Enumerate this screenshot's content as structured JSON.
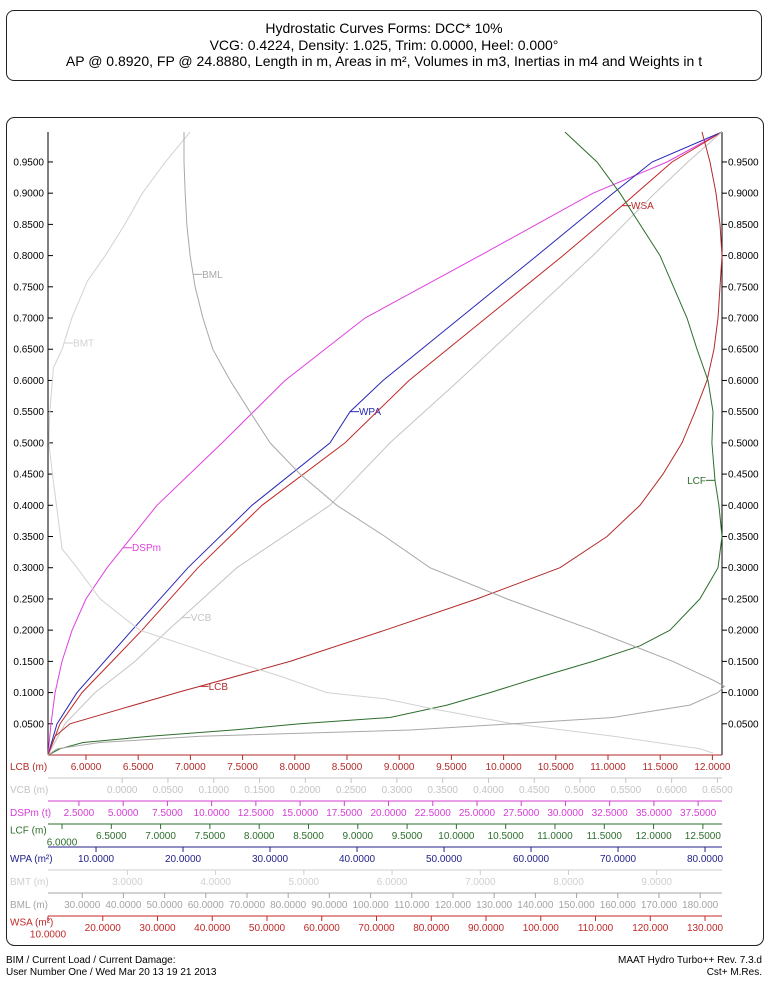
{
  "header": {
    "line1": "Hydrostatic Curves Forms: DCC* 10%",
    "line2": "VCG: 0.4224, Density: 1.025, Trim: 0.0000, Heel: 0.000°",
    "line3": "AP @ 0.8920, FP @ 24.8880, Length in m, Areas in m², Volumes in m3, Inertias in m4 and Weights in t"
  },
  "footer": {
    "left1": "BIM / Current Load / Current Damage:",
    "left2": "User Number One / Wed Mar 20 13 19 21 2013",
    "right1": "MAAT Hydro Turbo++ Rev. 7.3.d",
    "right2": "Cst+ M.Res."
  },
  "chart_data": {
    "type": "line",
    "title": "Hydrostatic Curves Forms: DCC* 10%",
    "ylim": [
      0,
      0.998
    ],
    "y_ticks": [
      "0.0500",
      "0.1000",
      "0.1500",
      "0.2000",
      "0.2500",
      "0.3000",
      "0.3500",
      "0.4000",
      "0.4500",
      "0.5000",
      "0.5500",
      "0.6000",
      "0.6500",
      "0.7000",
      "0.7500",
      "0.8000",
      "0.8500",
      "0.9000",
      "0.9500"
    ],
    "grid": false,
    "x_axes": [
      {
        "key": "LCB",
        "label": "LCB (m)",
        "color": "#b22a2a",
        "range": [
          5.636,
          12.092
        ],
        "ticks": [
          "6.0000",
          "6.5000",
          "7.0000",
          "7.5000",
          "8.0000",
          "8.5000",
          "9.0000",
          "9.5000",
          "10.0000",
          "10.5000",
          "11.0000",
          "11.5000",
          "12.0000"
        ]
      },
      {
        "key": "VCB",
        "label": "VCB (m)",
        "color": "#c4c4c4",
        "range": [
          -0.081,
          0.655
        ],
        "ticks": [
          "0.0000",
          "0.0500",
          "0.1000",
          "0.1500",
          "0.2000",
          "0.2500",
          "0.3000",
          "0.3500",
          "0.4000",
          "0.4500",
          "0.5000",
          "0.5500",
          "0.6000",
          "0.6500"
        ]
      },
      {
        "key": "DSPm",
        "label": "DSPm (t)",
        "color": "#d63cd6",
        "range": [
          0.75,
          38.85
        ],
        "ticks": [
          "2.5000",
          "5.0000",
          "7.5000",
          "10.0000",
          "12.5000",
          "15.0000",
          "17.5000",
          "20.0000",
          "22.5000",
          "25.0000",
          "27.5000",
          "30.0000",
          "32.5000",
          "35.0000",
          "37.5000"
        ]
      },
      {
        "key": "LCF",
        "label": "LCF (m)",
        "color": "#2d6e2d",
        "range": [
          5.858,
          12.694
        ],
        "ticks": [
          "6.0000",
          "6.5000",
          "7.0000",
          "7.5000",
          "8.0000",
          "8.5000",
          "9.0000",
          "9.5000",
          "10.0000",
          "10.5000",
          "11.0000",
          "11.5000",
          "12.0000",
          "12.5000"
        ]
      },
      {
        "key": "WPA",
        "label": "WPA (m²)",
        "color": "#22228a",
        "range": [
          4.48,
          81.95
        ],
        "ticks": [
          "10.0000",
          "20.0000",
          "30.0000",
          "40.0000",
          "50.0000",
          "60.0000",
          "70.0000",
          "80.0000"
        ]
      },
      {
        "key": "BMT",
        "label": "BMT (m)",
        "color": "#cfcfcf",
        "range": [
          2.1,
          9.74
        ],
        "ticks": [
          "3.0000",
          "4.0000",
          "5.0000",
          "6.0000",
          "7.0000",
          "8.0000",
          "9.0000"
        ]
      },
      {
        "key": "BML",
        "label": "BML (m)",
        "color": "#a4a4a4",
        "range": [
          21.7,
          185.3
        ],
        "ticks": [
          "30.0000",
          "40.0000",
          "50.0000",
          "60.0000",
          "70.0000",
          "80.0000",
          "90.0000",
          "100.000",
          "110.000",
          "120.000",
          "130.000",
          "140.000",
          "150.000",
          "160.000",
          "170.000",
          "180.000"
        ]
      },
      {
        "key": "WSA",
        "label": "WSA (m²)",
        "color": "#c02828",
        "range": [
          10,
          133.1
        ],
        "ticks": [
          "10.0000",
          "20.0000",
          "30.0000",
          "40.0000",
          "50.0000",
          "60.0000",
          "70.0000",
          "80.0000",
          "90.0000",
          "100.000",
          "110.000",
          "120.000",
          "130.000"
        ]
      }
    ],
    "series": [
      {
        "name": "DSPm",
        "axis": "DSPm",
        "color": "#e040e0",
        "label_at": 0.332,
        "points": [
          [
            0.75,
            0
          ],
          [
            0.92,
            0.05
          ],
          [
            1.15,
            0.1
          ],
          [
            1.54,
            0.15
          ],
          [
            2.11,
            0.2
          ],
          [
            2.9,
            0.25
          ],
          [
            4.09,
            0.3
          ],
          [
            6.91,
            0.4
          ],
          [
            10.59,
            0.5
          ],
          [
            14.15,
            0.6
          ],
          [
            18.67,
            0.7
          ],
          [
            25.17,
            0.8
          ],
          [
            31.56,
            0.9
          ],
          [
            35.74,
            0.95
          ],
          [
            38.85,
            0.998
          ]
        ]
      },
      {
        "name": "WPA",
        "axis": "WPA",
        "color": "#2828b4",
        "label_at": 0.55,
        "points": [
          [
            4.48,
            0
          ],
          [
            5.51,
            0.05
          ],
          [
            7.81,
            0.1
          ],
          [
            14.14,
            0.2
          ],
          [
            20.57,
            0.3
          ],
          [
            27.93,
            0.4
          ],
          [
            36.89,
            0.5
          ],
          [
            39.19,
            0.55
          ],
          [
            42.99,
            0.6
          ],
          [
            51.84,
            0.7
          ],
          [
            60.69,
            0.8
          ],
          [
            69.42,
            0.9
          ],
          [
            73.91,
            0.95
          ],
          [
            81.95,
            0.998
          ]
        ]
      },
      {
        "name": "WSA",
        "axis": "WSA",
        "color": "#c02828",
        "label_at": 0.88,
        "points": [
          [
            10,
            0
          ],
          [
            12.19,
            0.05
          ],
          [
            16.21,
            0.1
          ],
          [
            27.17,
            0.2
          ],
          [
            37.4,
            0.3
          ],
          [
            49.09,
            0.4
          ],
          [
            64.25,
            0.5
          ],
          [
            75.94,
            0.6
          ],
          [
            90.0,
            0.7
          ],
          [
            104.06,
            0.8
          ],
          [
            114.84,
            0.88
          ],
          [
            123.97,
            0.95
          ],
          [
            133.1,
            0.998
          ]
        ]
      },
      {
        "name": "VCB",
        "axis": "VCB",
        "color": "#c4c4c4",
        "label_at": 0.22,
        "points": [
          [
            -0.081,
            0
          ],
          [
            -0.0624,
            0.05
          ],
          [
            -0.0297,
            0.1
          ],
          [
            0.014,
            0.15
          ],
          [
            0.05,
            0.2
          ],
          [
            0.1253,
            0.3
          ],
          [
            0.2269,
            0.4
          ],
          [
            0.2923,
            0.5
          ],
          [
            0.3677,
            0.6
          ],
          [
            0.4408,
            0.7
          ],
          [
            0.514,
            0.8
          ],
          [
            0.5817,
            0.9
          ],
          [
            0.6177,
            0.95
          ],
          [
            0.6548,
            0.998
          ]
        ]
      },
      {
        "name": "LCB",
        "axis": "LCB",
        "color": "#b22a2a",
        "label_at": 0.11,
        "points": [
          [
            5.636,
            0
          ],
          [
            5.703,
            0.03
          ],
          [
            5.847,
            0.05
          ],
          [
            6.872,
            0.1
          ],
          [
            7.954,
            0.15
          ],
          [
            8.864,
            0.2
          ],
          [
            9.745,
            0.25
          ],
          [
            10.54,
            0.3
          ],
          [
            10.99,
            0.35
          ],
          [
            11.307,
            0.4
          ],
          [
            11.527,
            0.45
          ],
          [
            11.709,
            0.5
          ],
          [
            11.833,
            0.55
          ],
          [
            11.948,
            0.6
          ],
          [
            12.015,
            0.65
          ],
          [
            12.054,
            0.7
          ],
          [
            12.092,
            0.8
          ],
          [
            12.073,
            0.85
          ],
          [
            12.035,
            0.9
          ],
          [
            11.977,
            0.95
          ],
          [
            11.9,
            0.998
          ]
        ]
      },
      {
        "name": "LCF",
        "axis": "LCF",
        "color": "#2d6e2d",
        "label_at": 0.44,
        "points": [
          [
            5.858,
            0
          ],
          [
            5.98,
            0.01
          ],
          [
            6.213,
            0.02
          ],
          [
            6.892,
            0.03
          ],
          [
            7.734,
            0.04
          ],
          [
            8.414,
            0.05
          ],
          [
            9.327,
            0.06
          ],
          [
            9.905,
            0.08
          ],
          [
            10.341,
            0.1
          ],
          [
            10.848,
            0.125
          ],
          [
            11.385,
            0.15
          ],
          [
            11.862,
            0.175
          ],
          [
            12.166,
            0.2
          ],
          [
            12.47,
            0.25
          ],
          [
            12.653,
            0.3
          ],
          [
            12.694,
            0.35
          ],
          [
            12.663,
            0.4
          ],
          [
            12.623,
            0.44
          ],
          [
            12.592,
            0.5
          ],
          [
            12.603,
            0.55
          ],
          [
            12.552,
            0.6
          ],
          [
            12.44,
            0.65
          ],
          [
            12.339,
            0.7
          ],
          [
            12.065,
            0.8
          ],
          [
            11.659,
            0.9
          ],
          [
            11.426,
            0.95
          ],
          [
            11.101,
            0.998
          ]
        ]
      },
      {
        "name": "BMT",
        "axis": "BMT",
        "color": "#d2d2d2",
        "label_at": 0.66,
        "points": [
          [
            9.64,
            0.003
          ],
          [
            9.49,
            0.01
          ],
          [
            8.51,
            0.03
          ],
          [
            7.37,
            0.05
          ],
          [
            6.43,
            0.075
          ],
          [
            5.92,
            0.09
          ],
          [
            5.26,
            0.1
          ],
          [
            4.76,
            0.125
          ],
          [
            4.2,
            0.15
          ],
          [
            3.68,
            0.175
          ],
          [
            3.14,
            0.2
          ],
          [
            2.69,
            0.25
          ],
          [
            2.43,
            0.3
          ],
          [
            2.26,
            0.33
          ],
          [
            2.15,
            0.45
          ],
          [
            2.11,
            0.5
          ],
          [
            2.12,
            0.55
          ],
          [
            2.15,
            0.6
          ],
          [
            2.16,
            0.62
          ],
          [
            2.26,
            0.65
          ],
          [
            2.37,
            0.7
          ],
          [
            2.55,
            0.76
          ],
          [
            2.75,
            0.8
          ],
          [
            2.97,
            0.85
          ],
          [
            3.17,
            0.9
          ],
          [
            3.43,
            0.95
          ],
          [
            3.71,
            0.998
          ]
        ]
      },
      {
        "name": "BML",
        "axis": "BML",
        "color": "#a8a8a8",
        "label_at": 0.77,
        "points": [
          [
            21.7,
            0
          ],
          [
            23.9,
            0.01
          ],
          [
            34.3,
            0.02
          ],
          [
            58.6,
            0.03
          ],
          [
            109.6,
            0.04
          ],
          [
            134.6,
            0.05
          ],
          [
            158.8,
            0.06
          ],
          [
            177.5,
            0.08
          ],
          [
            184.3,
            0.1
          ],
          [
            185.9,
            0.11
          ],
          [
            183.1,
            0.12
          ],
          [
            173.4,
            0.15
          ],
          [
            154.0,
            0.2
          ],
          [
            133.1,
            0.25
          ],
          [
            114.4,
            0.3
          ],
          [
            103.5,
            0.35
          ],
          [
            91.8,
            0.4
          ],
          [
            82.9,
            0.45
          ],
          [
            75.6,
            0.5
          ],
          [
            70.7,
            0.55
          ],
          [
            65.9,
            0.6
          ],
          [
            61.7,
            0.65
          ],
          [
            59.3,
            0.7
          ],
          [
            57.4,
            0.75
          ],
          [
            56.2,
            0.8
          ],
          [
            55.4,
            0.85
          ],
          [
            55.0,
            0.9
          ],
          [
            54.7,
            0.95
          ],
          [
            54.7,
            0.998
          ]
        ]
      }
    ]
  }
}
